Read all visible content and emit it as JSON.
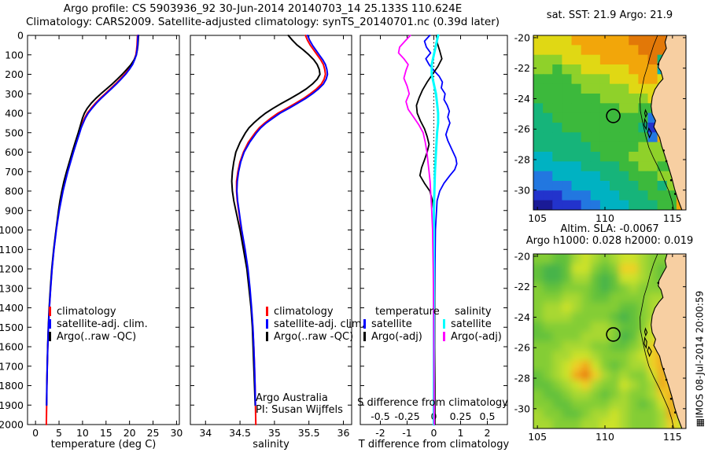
{
  "figure": {
    "title_line1": "Argo profile: CS 5903936_92 30-Jun-2014 20140703_14 25.133S 110.624E",
    "title_line2": "Climatology: CARS2009. Satellite-adjusted climatology: synTS_20140701.nc (0.39d later)",
    "credit_line1": "Argo Australia",
    "credit_line2": "PI: Susan Wijffels",
    "imos_stamp": "▦IMOS 08-Jul-2014 20:00:59"
  },
  "legends": {
    "profile": [
      {
        "label": "climatology",
        "color": "#ff0000"
      },
      {
        "label": "satellite-adj. clim.",
        "color": "#0000ff"
      },
      {
        "label": "Argo(..raw -QC)",
        "color": "#000000"
      }
    ],
    "difference": {
      "temperature_header": "temperature",
      "salinity_header": "salinity",
      "temperature_items": [
        {
          "label": "satellite",
          "color": "#0000ff"
        },
        {
          "label": "Argo(-adj)",
          "color": "#000000"
        }
      ],
      "salinity_items": [
        {
          "label": "satellite",
          "color": "#00ffff"
        },
        {
          "label": "Argo(-adj)",
          "color": "#ff00ff"
        }
      ]
    }
  },
  "geo": {
    "land_color": "#f7cfa2",
    "coast": [
      [
        114.6,
        -19.85
      ],
      [
        114.45,
        -20.3
      ],
      [
        114.55,
        -20.7
      ],
      [
        114.3,
        -21.1
      ],
      [
        114.0,
        -21.6
      ],
      [
        113.95,
        -21.95
      ],
      [
        114.15,
        -22.2
      ],
      [
        114.3,
        -22.7
      ],
      [
        114.0,
        -23.0
      ],
      [
        113.7,
        -23.4
      ],
      [
        113.5,
        -23.9
      ],
      [
        113.42,
        -24.5
      ],
      [
        113.5,
        -25.0
      ],
      [
        113.75,
        -25.45
      ],
      [
        113.62,
        -25.85
      ],
      [
        113.85,
        -26.25
      ],
      [
        114.05,
        -26.55
      ],
      [
        114.2,
        -27.1
      ],
      [
        114.5,
        -27.9
      ],
      [
        114.75,
        -28.6
      ],
      [
        114.95,
        -29.2
      ],
      [
        115.15,
        -29.9
      ],
      [
        115.4,
        -30.6
      ],
      [
        115.7,
        -31.3
      ]
    ],
    "isobath": [
      [
        113.9,
        -19.85
      ],
      [
        113.6,
        -20.5
      ],
      [
        113.35,
        -21.2
      ],
      [
        113.15,
        -21.9
      ],
      [
        112.9,
        -22.6
      ],
      [
        112.75,
        -23.3
      ],
      [
        112.6,
        -24.0
      ],
      [
        112.62,
        -24.8
      ],
      [
        112.8,
        -25.6
      ],
      [
        113.0,
        -26.4
      ],
      [
        113.25,
        -27.2
      ],
      [
        113.6,
        -27.9
      ],
      [
        114.0,
        -28.6
      ],
      [
        114.35,
        -29.3
      ],
      [
        114.7,
        -30.0
      ],
      [
        114.95,
        -30.7
      ],
      [
        115.1,
        -31.3
      ]
    ],
    "islands": [
      [
        [
          112.95,
          -25.35
        ],
        [
          113.1,
          -25.6
        ],
        [
          113.05,
          -26.0
        ],
        [
          112.9,
          -25.75
        ]
      ],
      [
        [
          113.25,
          -25.95
        ],
        [
          113.45,
          -26.25
        ],
        [
          113.3,
          -26.55
        ],
        [
          113.15,
          -26.2
        ]
      ],
      [
        [
          113.0,
          -24.75
        ],
        [
          113.12,
          -25.0
        ],
        [
          113.02,
          -25.2
        ],
        [
          112.94,
          -24.95
        ]
      ]
    ],
    "coast_dots": [
      [
        113.95,
        -21.75
      ],
      [
        114.35,
        -27.4
      ],
      [
        114.55,
        -28.1
      ],
      [
        114.9,
        -29.35
      ],
      [
        115.2,
        -30.25
      ]
    ]
  },
  "chart_data": [
    {
      "type": "line",
      "id": "temperature-profile",
      "xlabel": "temperature (deg C)",
      "xlim": [
        -1.7,
        30.6
      ],
      "xticks": [
        0,
        5,
        10,
        15,
        20,
        25,
        30
      ],
      "ylim": [
        0,
        2000
      ],
      "yticks": [
        0,
        100,
        200,
        300,
        400,
        500,
        600,
        700,
        800,
        900,
        1000,
        1100,
        1200,
        1300,
        1400,
        1500,
        1600,
        1700,
        1800,
        1900,
        2000
      ],
      "depth": [
        0,
        25,
        50,
        75,
        100,
        125,
        150,
        175,
        200,
        225,
        250,
        275,
        300,
        325,
        350,
        375,
        400,
        425,
        450,
        475,
        500,
        550,
        600,
        650,
        700,
        750,
        800,
        850,
        900,
        950,
        1000,
        1100,
        1200,
        1300,
        1400,
        1500,
        1600,
        1700,
        1800,
        1900,
        2000
      ],
      "series": [
        {
          "name": "climatology",
          "color": "#ff0000",
          "width": 2,
          "values": [
            21.7,
            21.65,
            21.6,
            21.5,
            21.35,
            21.0,
            20.5,
            19.8,
            18.95,
            18.0,
            17.0,
            15.9,
            14.8,
            13.7,
            12.7,
            11.8,
            11.0,
            10.45,
            10.0,
            9.6,
            9.3,
            8.65,
            8.0,
            7.4,
            6.8,
            6.3,
            5.8,
            5.4,
            5.0,
            4.7,
            4.4,
            3.9,
            3.5,
            3.2,
            2.95,
            2.75,
            2.6,
            2.5,
            2.42,
            2.36,
            2.3
          ]
        },
        {
          "name": "Argo(..raw -QC)",
          "color": "#000000",
          "width": 2,
          "n": 40,
          "values": [
            21.9,
            21.85,
            21.78,
            21.65,
            21.45,
            21.0,
            20.3,
            19.4,
            18.45,
            17.4,
            16.3,
            15.1,
            13.9,
            12.8,
            11.8,
            11.0,
            10.4,
            10.0,
            9.7,
            9.4,
            9.1,
            8.45,
            7.8,
            7.2,
            6.6,
            6.05,
            5.6,
            5.2,
            4.9,
            4.62,
            4.35,
            3.85,
            3.45,
            3.15,
            2.9,
            2.72,
            2.58,
            2.48,
            2.4,
            2.35
          ]
        },
        {
          "name": "satellite-adj. clim.",
          "color": "#0000ff",
          "width": 2,
          "n": 40,
          "values": [
            21.8,
            21.75,
            21.7,
            21.6,
            21.45,
            21.1,
            20.65,
            19.95,
            19.15,
            18.2,
            17.2,
            16.1,
            15.0,
            13.9,
            12.9,
            12.0,
            11.2,
            10.6,
            10.15,
            9.72,
            9.4,
            8.72,
            8.07,
            7.47,
            6.87,
            6.35,
            5.85,
            5.45,
            5.05,
            4.73,
            4.43,
            3.93,
            3.52,
            3.22,
            2.96,
            2.76,
            2.6,
            2.5,
            2.42,
            2.36
          ]
        }
      ]
    },
    {
      "type": "line",
      "id": "salinity-profile",
      "xlabel": "salinity",
      "xlim": [
        33.78,
        36.12
      ],
      "xticks": [
        34,
        34.5,
        35,
        35.5,
        36
      ],
      "ylim": [
        0,
        2000
      ],
      "yticks": [
        0,
        100,
        200,
        300,
        400,
        500,
        600,
        700,
        800,
        900,
        1000,
        1100,
        1200,
        1300,
        1400,
        1500,
        1600,
        1700,
        1800,
        1900,
        2000
      ],
      "depth": [
        0,
        25,
        50,
        75,
        100,
        125,
        150,
        175,
        200,
        225,
        250,
        275,
        300,
        325,
        350,
        375,
        400,
        425,
        450,
        475,
        500,
        550,
        600,
        650,
        700,
        750,
        800,
        850,
        900,
        950,
        1000,
        1100,
        1200,
        1300,
        1400,
        1500,
        1600,
        1700,
        1800,
        1900,
        2000
      ],
      "series": [
        {
          "name": "climatology",
          "color": "#ff0000",
          "width": 2,
          "values": [
            35.45,
            35.48,
            35.52,
            35.57,
            35.62,
            35.67,
            35.71,
            35.73,
            35.74,
            35.72,
            35.68,
            35.61,
            35.52,
            35.42,
            35.3,
            35.18,
            35.05,
            34.95,
            34.86,
            34.78,
            34.72,
            34.62,
            34.55,
            34.5,
            34.47,
            34.45,
            34.45,
            34.46,
            34.48,
            34.5,
            34.52,
            34.57,
            34.61,
            34.64,
            34.665,
            34.685,
            34.7,
            34.71,
            34.718,
            34.724,
            34.73
          ]
        },
        {
          "name": "Argo(..raw -QC)",
          "color": "#000000",
          "width": 2,
          "n": 40,
          "values": [
            35.2,
            35.26,
            35.33,
            35.42,
            35.5,
            35.57,
            35.62,
            35.65,
            35.66,
            35.62,
            35.55,
            35.46,
            35.35,
            35.23,
            35.1,
            34.98,
            34.87,
            34.78,
            34.7,
            34.63,
            34.58,
            34.5,
            34.44,
            34.41,
            34.39,
            34.38,
            34.39,
            34.41,
            34.44,
            34.47,
            34.5,
            34.55,
            34.6,
            34.63,
            34.66,
            34.68,
            34.69,
            34.7,
            34.71,
            34.72
          ]
        },
        {
          "name": "satellite-adj. clim.",
          "color": "#0000ff",
          "width": 2,
          "n": 40,
          "values": [
            35.48,
            35.51,
            35.55,
            35.6,
            35.65,
            35.7,
            35.74,
            35.76,
            35.77,
            35.75,
            35.71,
            35.64,
            35.55,
            35.45,
            35.33,
            35.21,
            35.08,
            34.98,
            34.88,
            34.8,
            34.74,
            34.64,
            34.56,
            34.51,
            34.48,
            34.46,
            34.455,
            34.465,
            34.485,
            34.505,
            34.525,
            34.575,
            34.615,
            34.645,
            34.668,
            34.687,
            34.7,
            34.71,
            34.718,
            34.724
          ]
        }
      ]
    },
    {
      "type": "line",
      "id": "difference-profile",
      "xlabel": "T difference from climatology",
      "xlabel2": "S difference from climatology",
      "xlim": [
        -2.75,
        2.75
      ],
      "xticks": [
        -2,
        -1,
        0,
        1,
        2
      ],
      "xticks2": [
        -0.5,
        -0.25,
        0,
        0.25,
        0.5
      ],
      "s_scale": 4,
      "ylim": [
        0,
        2000
      ],
      "zero_line": true,
      "series": [
        {
          "name": "T satellite",
          "color": "#0000ff",
          "width": 1.8,
          "scale": "T",
          "depth": [
            0,
            30,
            60,
            90,
            120,
            150,
            180,
            210,
            240,
            270,
            300,
            330,
            360,
            390,
            420,
            450,
            480,
            510,
            540,
            570,
            600,
            630,
            660,
            690,
            720,
            760,
            800,
            850,
            900,
            950,
            1000,
            1100,
            1200,
            1400,
            1600,
            1800,
            2000
          ],
          "values": [
            -0.15,
            -0.35,
            -0.28,
            -0.12,
            -0.3,
            -0.18,
            0.0,
            0.2,
            0.32,
            0.28,
            0.42,
            0.38,
            0.5,
            0.58,
            0.52,
            0.6,
            0.52,
            0.45,
            0.52,
            0.62,
            0.72,
            0.82,
            0.86,
            0.78,
            0.6,
            0.38,
            0.22,
            0.12,
            0.1,
            0.08,
            0.06,
            0.05,
            0.04,
            0.03,
            0.02,
            0.02,
            0.02
          ]
        },
        {
          "name": "T Argo(-adj)",
          "color": "#000000",
          "width": 1.8,
          "scale": "T",
          "depth": [
            0,
            40,
            80,
            120,
            160,
            200,
            240,
            280,
            320,
            360,
            400,
            440,
            480,
            520,
            560,
            600,
            640,
            680,
            720,
            760,
            800,
            850,
            900,
            1000,
            1100,
            1200,
            1400,
            1600,
            1800,
            2000
          ],
          "values": [
            0.1,
            0.13,
            0.22,
            0.3,
            0.15,
            -0.05,
            -0.25,
            -0.42,
            -0.55,
            -0.65,
            -0.62,
            -0.5,
            -0.35,
            -0.25,
            -0.18,
            -0.25,
            -0.35,
            -0.46,
            -0.52,
            -0.35,
            -0.15,
            -0.05,
            -0.01,
            0.0,
            0.01,
            0.02,
            0.03,
            0.03,
            0.04,
            0.04
          ]
        },
        {
          "name": "S satellite",
          "color": "#00ffff",
          "width": 3,
          "scale": "S",
          "depth": [
            0,
            50,
            100,
            150,
            200,
            250,
            300,
            350,
            400,
            450,
            500,
            600,
            700,
            800,
            900,
            1000,
            1200,
            1400,
            1600,
            1800,
            2000
          ],
          "values": [
            0.04,
            0.02,
            0.0,
            -0.02,
            -0.02,
            0.0,
            0.02,
            0.03,
            0.04,
            0.04,
            0.03,
            0.02,
            0.01,
            0.005,
            0.0,
            0.0,
            0.0,
            0.0,
            0.0,
            0.0,
            0.0
          ]
        },
        {
          "name": "S Argo(-adj)",
          "color": "#ff00ff",
          "width": 1.8,
          "scale": "S",
          "depth": [
            0,
            30,
            60,
            90,
            120,
            150,
            180,
            220,
            260,
            300,
            340,
            380,
            420,
            460,
            500,
            550,
            600,
            650,
            700,
            750,
            800,
            900,
            1000,
            1200,
            1400,
            1600,
            1800,
            2000
          ],
          "values": [
            -0.22,
            -0.27,
            -0.32,
            -0.33,
            -0.28,
            -0.24,
            -0.26,
            -0.28,
            -0.25,
            -0.23,
            -0.26,
            -0.24,
            -0.19,
            -0.14,
            -0.1,
            -0.08,
            -0.065,
            -0.055,
            -0.045,
            -0.035,
            -0.03,
            -0.02,
            -0.012,
            -0.006,
            -0.002,
            0.0,
            0.002,
            0.004
          ]
        }
      ]
    },
    {
      "type": "heatmap",
      "id": "sst-map",
      "title": "sat. SST: 21.9 Argo: 21.9",
      "lon_range": [
        104.7,
        116.0
      ],
      "lat_range": [
        -31.3,
        -19.85
      ],
      "xticks": [
        105,
        110,
        115
      ],
      "yticks": [
        -20,
        -22,
        -24,
        -26,
        -28,
        -30
      ],
      "marker": {
        "lon": 110.62,
        "lat": -25.13
      },
      "smooth": false,
      "colormap": [
        "#1a1a96",
        "#2233cc",
        "#2277e0",
        "#00b2c2",
        "#16b47a",
        "#3cb93c",
        "#8fd12a",
        "#e0d814",
        "#f2a60a",
        "#e27808"
      ],
      "grid": [
        "7777888888999999",
        "7777788888899999",
        "6667777888889499",
        "6656677777888388",
        "5555666677788788",
        "5555566666777688",
        "5555555666667588",
        "4555555556655488",
        "4455555555552888",
        "4445555555541888",
        "4444455555552888",
        "4444445555566658",
        "3344444555666668",
        "3333344445566558",
        "2233333444555668",
        "2222333344455468",
        "1112223334445558",
        "0011122333444558"
      ]
    },
    {
      "type": "heatmap",
      "id": "sla-map",
      "title_line1": "Altim. SLA: -0.0067",
      "title_line2": "Argo h1000: 0.028 h2000: 0.019",
      "lon_range": [
        104.7,
        116.0
      ],
      "lat_range": [
        -31.3,
        -19.85
      ],
      "xticks": [
        105,
        110,
        115
      ],
      "yticks": [
        -20,
        -22,
        -24,
        -26,
        -28,
        -30
      ],
      "marker": {
        "lon": 110.62,
        "lat": -25.13
      },
      "smooth": true,
      "colormap": [
        "#0f9a78",
        "#27a75e",
        "#46b448",
        "#63c13a",
        "#84cd34",
        "#a8d830",
        "#cce22c",
        "#eed028",
        "#f2a81e",
        "#e87f12"
      ],
      "grid": [
        "4433565456654444",
        "3223664347754344",
        "3223553236654344",
        "4334443234544444",
        "4445543344445544",
        "4556544443345644",
        "4555444432345654",
        "3444445543346754",
        "3344455542356754",
        "4445554433457854",
        "4455665444567854",
        "4456786434557854",
        "3456897545446864",
        "3345675446545874",
        "4334554345445784",
        "4433444455434685",
        "5443345565444586",
        "5544455665444576"
      ]
    }
  ]
}
